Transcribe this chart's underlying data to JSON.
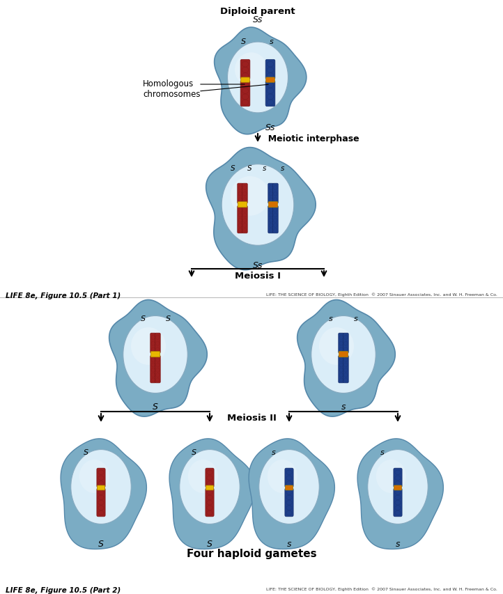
{
  "bg_color": "#ffffff",
  "cell_outer_color": "#7bacc4",
  "cell_inner_color": "#daedf8",
  "cell_inner_light": "#edf5fb",
  "red_chr_color": "#9b2020",
  "red_chr_dark": "#7a1515",
  "blue_chr_color": "#1e3f8a",
  "blue_chr_dark": "#152d6b",
  "centromere_red": "#e8b800",
  "centromere_blue": "#d47000",
  "title_top": "Diploid parent",
  "title_top_italic": "Ss",
  "label_homologous": "Homologous\nchromosomes",
  "label_meiotic": "Meiotic interphase",
  "label_meiosis1": "Meiosis I",
  "label_meiosis2": "Meiosis II",
  "label_gametes": "Four haploid gametes",
  "fig_caption1": "LIFE 8e, Figure 10.5 (Part 1)",
  "fig_caption2": "LIFE 8e, Figure 10.5 (Part 2)",
  "copyright": "LIFE: THE SCIENCE OF BIOLOGY, Eighth Edition  © 2007 Sinauer Associates, Inc. and W. H. Freeman & Co."
}
